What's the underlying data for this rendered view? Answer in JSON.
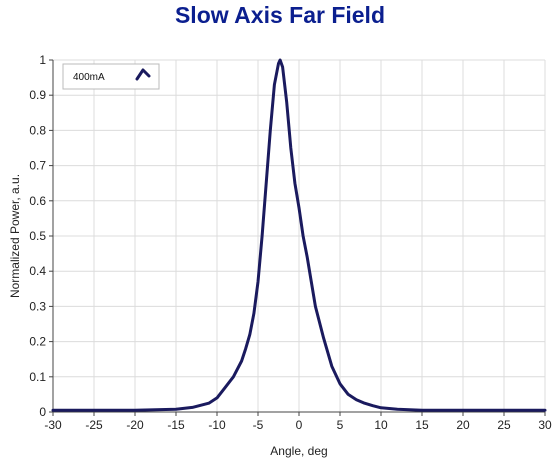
{
  "chart_data": {
    "type": "line",
    "title": "Slow Axis Far Field",
    "xlabel": "Angle, deg",
    "ylabel": "Normalized Power, a.u.",
    "xlim": [
      -30,
      30
    ],
    "ylim": [
      0,
      1
    ],
    "xticks": [
      -30,
      -25,
      -20,
      -15,
      -10,
      -5,
      0,
      5,
      10,
      15,
      20,
      25,
      30
    ],
    "yticks": [
      0,
      0.1,
      0.2,
      0.3,
      0.4,
      0.5,
      0.6,
      0.7,
      0.8,
      0.9,
      1
    ],
    "ytick_labels": [
      "0",
      "0.1",
      "0.2",
      "0.3",
      "0.4",
      "0.5",
      "0.6",
      "0.7",
      "0.8",
      "0.9",
      "1"
    ],
    "grid": true,
    "legend_position": "top-left",
    "series": [
      {
        "name": "400mA",
        "color": "#1a1a5e",
        "x": [
          -30,
          -25,
          -20,
          -15,
          -13,
          -11,
          -10,
          -9,
          -8,
          -7,
          -6.5,
          -6,
          -5.5,
          -5,
          -4.5,
          -4,
          -3.5,
          -3,
          -2.5,
          -2.3,
          -2,
          -1.5,
          -1,
          -0.5,
          0,
          0.5,
          1,
          1.5,
          2,
          3,
          4,
          5,
          6,
          7,
          8,
          9,
          10,
          12,
          15,
          20,
          25,
          30
        ],
        "y": [
          0.005,
          0.005,
          0.005,
          0.008,
          0.013,
          0.025,
          0.04,
          0.07,
          0.1,
          0.145,
          0.18,
          0.22,
          0.28,
          0.37,
          0.5,
          0.65,
          0.8,
          0.93,
          0.99,
          1.0,
          0.98,
          0.88,
          0.75,
          0.65,
          0.58,
          0.5,
          0.44,
          0.37,
          0.3,
          0.21,
          0.13,
          0.08,
          0.05,
          0.035,
          0.025,
          0.018,
          0.012,
          0.008,
          0.005,
          0.005,
          0.005,
          0.005
        ]
      }
    ]
  }
}
